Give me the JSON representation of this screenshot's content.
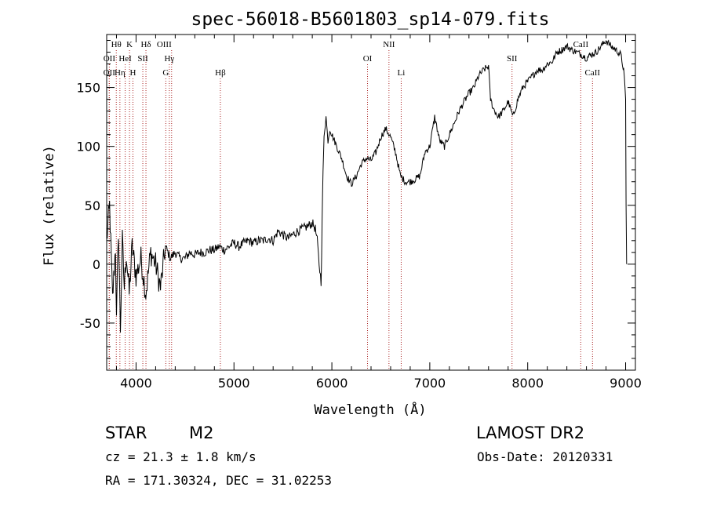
{
  "page": {
    "object_class": "STAR",
    "subclass": "M2",
    "survey": "LAMOST DR2",
    "redshift_line": "cz = 21.3 ± 1.8 km/s",
    "obs_date": "Obs-Date: 20120331",
    "coords": "RA = 171.30324, DEC =  31.02253"
  },
  "colors": {
    "line": "#000000",
    "marker": "#aa2222",
    "axes": "#000000",
    "background": "#ffffff"
  },
  "chart_data": {
    "type": "line",
    "title": "spec-56018-B5601803_sp14-079.fits",
    "xlabel": "Wavelength (Å)",
    "ylabel": "Flux (relative)",
    "xlim": [
      3700,
      9100
    ],
    "ylim": [
      -90,
      195
    ],
    "xticks": [
      4000,
      5000,
      6000,
      7000,
      8000,
      9000
    ],
    "yticks": [
      -50,
      0,
      50,
      100,
      150
    ],
    "grid": false,
    "series": [
      {
        "name": "",
        "points": [
          [
            3700,
            20
          ],
          [
            3730,
            50
          ],
          [
            3760,
            -30
          ],
          [
            3790,
            15
          ],
          [
            3800,
            -50
          ],
          [
            3820,
            30
          ],
          [
            3840,
            -55
          ],
          [
            3860,
            20
          ],
          [
            3880,
            -20
          ],
          [
            3900,
            10
          ],
          [
            3930,
            -25
          ],
          [
            3960,
            15
          ],
          [
            4000,
            -10
          ],
          [
            4050,
            5
          ],
          [
            4100,
            -25
          ],
          [
            4150,
            10
          ],
          [
            4200,
            0
          ],
          [
            4250,
            -20
          ],
          [
            4300,
            15
          ],
          [
            4350,
            5
          ],
          [
            4400,
            10
          ],
          [
            4450,
            5
          ],
          [
            4500,
            5
          ],
          [
            4550,
            10
          ],
          [
            4600,
            8
          ],
          [
            4650,
            10
          ],
          [
            4700,
            10
          ],
          [
            4750,
            12
          ],
          [
            4800,
            12
          ],
          [
            4850,
            15
          ],
          [
            4900,
            12
          ],
          [
            4950,
            15
          ],
          [
            5000,
            18
          ],
          [
            5050,
            15
          ],
          [
            5100,
            18
          ],
          [
            5150,
            20
          ],
          [
            5200,
            18
          ],
          [
            5250,
            20
          ],
          [
            5300,
            20
          ],
          [
            5350,
            22
          ],
          [
            5400,
            20
          ],
          [
            5450,
            28
          ],
          [
            5500,
            25
          ],
          [
            5550,
            22
          ],
          [
            5600,
            25
          ],
          [
            5650,
            28
          ],
          [
            5700,
            30
          ],
          [
            5750,
            32
          ],
          [
            5800,
            35
          ],
          [
            5830,
            30
          ],
          [
            5850,
            20
          ],
          [
            5870,
            0
          ],
          [
            5890,
            -15
          ],
          [
            5905,
            60
          ],
          [
            5920,
            110
          ],
          [
            5940,
            125
          ],
          [
            5960,
            105
          ],
          [
            5980,
            115
          ],
          [
            6000,
            110
          ],
          [
            6050,
            100
          ],
          [
            6100,
            90
          ],
          [
            6150,
            75
          ],
          [
            6200,
            68
          ],
          [
            6250,
            75
          ],
          [
            6300,
            85
          ],
          [
            6350,
            90
          ],
          [
            6400,
            88
          ],
          [
            6450,
            95
          ],
          [
            6500,
            108
          ],
          [
            6550,
            115
          ],
          [
            6600,
            108
          ],
          [
            6650,
            95
          ],
          [
            6700,
            75
          ],
          [
            6750,
            70
          ],
          [
            6800,
            70
          ],
          [
            6850,
            72
          ],
          [
            6900,
            75
          ],
          [
            6950,
            95
          ],
          [
            7000,
            100
          ],
          [
            7050,
            125
          ],
          [
            7100,
            105
          ],
          [
            7150,
            100
          ],
          [
            7200,
            110
          ],
          [
            7250,
            120
          ],
          [
            7300,
            130
          ],
          [
            7350,
            138
          ],
          [
            7400,
            145
          ],
          [
            7450,
            150
          ],
          [
            7500,
            160
          ],
          [
            7550,
            165
          ],
          [
            7600,
            168
          ],
          [
            7620,
            140
          ],
          [
            7650,
            132
          ],
          [
            7700,
            125
          ],
          [
            7750,
            130
          ],
          [
            7800,
            138
          ],
          [
            7850,
            125
          ],
          [
            7900,
            140
          ],
          [
            7950,
            150
          ],
          [
            8000,
            155
          ],
          [
            8050,
            160
          ],
          [
            8100,
            165
          ],
          [
            8150,
            165
          ],
          [
            8200,
            170
          ],
          [
            8250,
            172
          ],
          [
            8300,
            180
          ],
          [
            8350,
            182
          ],
          [
            8400,
            185
          ],
          [
            8450,
            182
          ],
          [
            8500,
            180
          ],
          [
            8550,
            178
          ],
          [
            8600,
            175
          ],
          [
            8650,
            178
          ],
          [
            8700,
            180
          ],
          [
            8750,
            185
          ],
          [
            8800,
            190
          ],
          [
            8850,
            185
          ],
          [
            8900,
            182
          ],
          [
            8950,
            178
          ],
          [
            8980,
            165
          ],
          [
            9000,
            140
          ],
          [
            9005,
            50
          ],
          [
            9010,
            0
          ]
        ]
      }
    ],
    "line_markers": [
      {
        "label": "Hθ",
        "x": 3798,
        "row": 0,
        "anchor": "middle"
      },
      {
        "label": "K",
        "x": 3933,
        "row": 0,
        "anchor": "middle"
      },
      {
        "label": "Hδ",
        "x": 4101,
        "row": 0,
        "anchor": "middle"
      },
      {
        "label": "OIII",
        "x": 4363,
        "row": 0,
        "anchor": "end"
      },
      {
        "label": "OII",
        "x": 3727,
        "row": 1,
        "anchor": "middle"
      },
      {
        "label": "HeI",
        "x": 3889,
        "row": 1,
        "anchor": "middle"
      },
      {
        "label": "SII",
        "x": 4069,
        "row": 1,
        "anchor": "middle"
      },
      {
        "label": "Hγ",
        "x": 4340,
        "row": 1,
        "anchor": "middle"
      },
      {
        "label": "OII",
        "x": 3726,
        "row": 2,
        "anchor": "middle"
      },
      {
        "label": "Hη",
        "x": 3835,
        "row": 2,
        "anchor": "middle"
      },
      {
        "label": "H",
        "x": 3968,
        "row": 2,
        "anchor": "middle"
      },
      {
        "label": "G",
        "x": 4304,
        "row": 2,
        "anchor": "middle"
      },
      {
        "label": "Hβ",
        "x": 4861,
        "row": 2,
        "anchor": "middle"
      },
      {
        "label": "NII",
        "x": 6583,
        "row": 0,
        "anchor": "middle"
      },
      {
        "label": "OI",
        "x": 6364,
        "row": 1,
        "anchor": "middle"
      },
      {
        "label": "Li",
        "x": 6708,
        "row": 2,
        "anchor": "middle"
      },
      {
        "label": "SII",
        "x": 7840,
        "row": 1,
        "anchor": "middle"
      },
      {
        "label": "CaII",
        "x": 8542,
        "row": 0,
        "anchor": "middle"
      },
      {
        "label": "CaII",
        "x": 8662,
        "row": 2,
        "anchor": "middle"
      }
    ]
  }
}
